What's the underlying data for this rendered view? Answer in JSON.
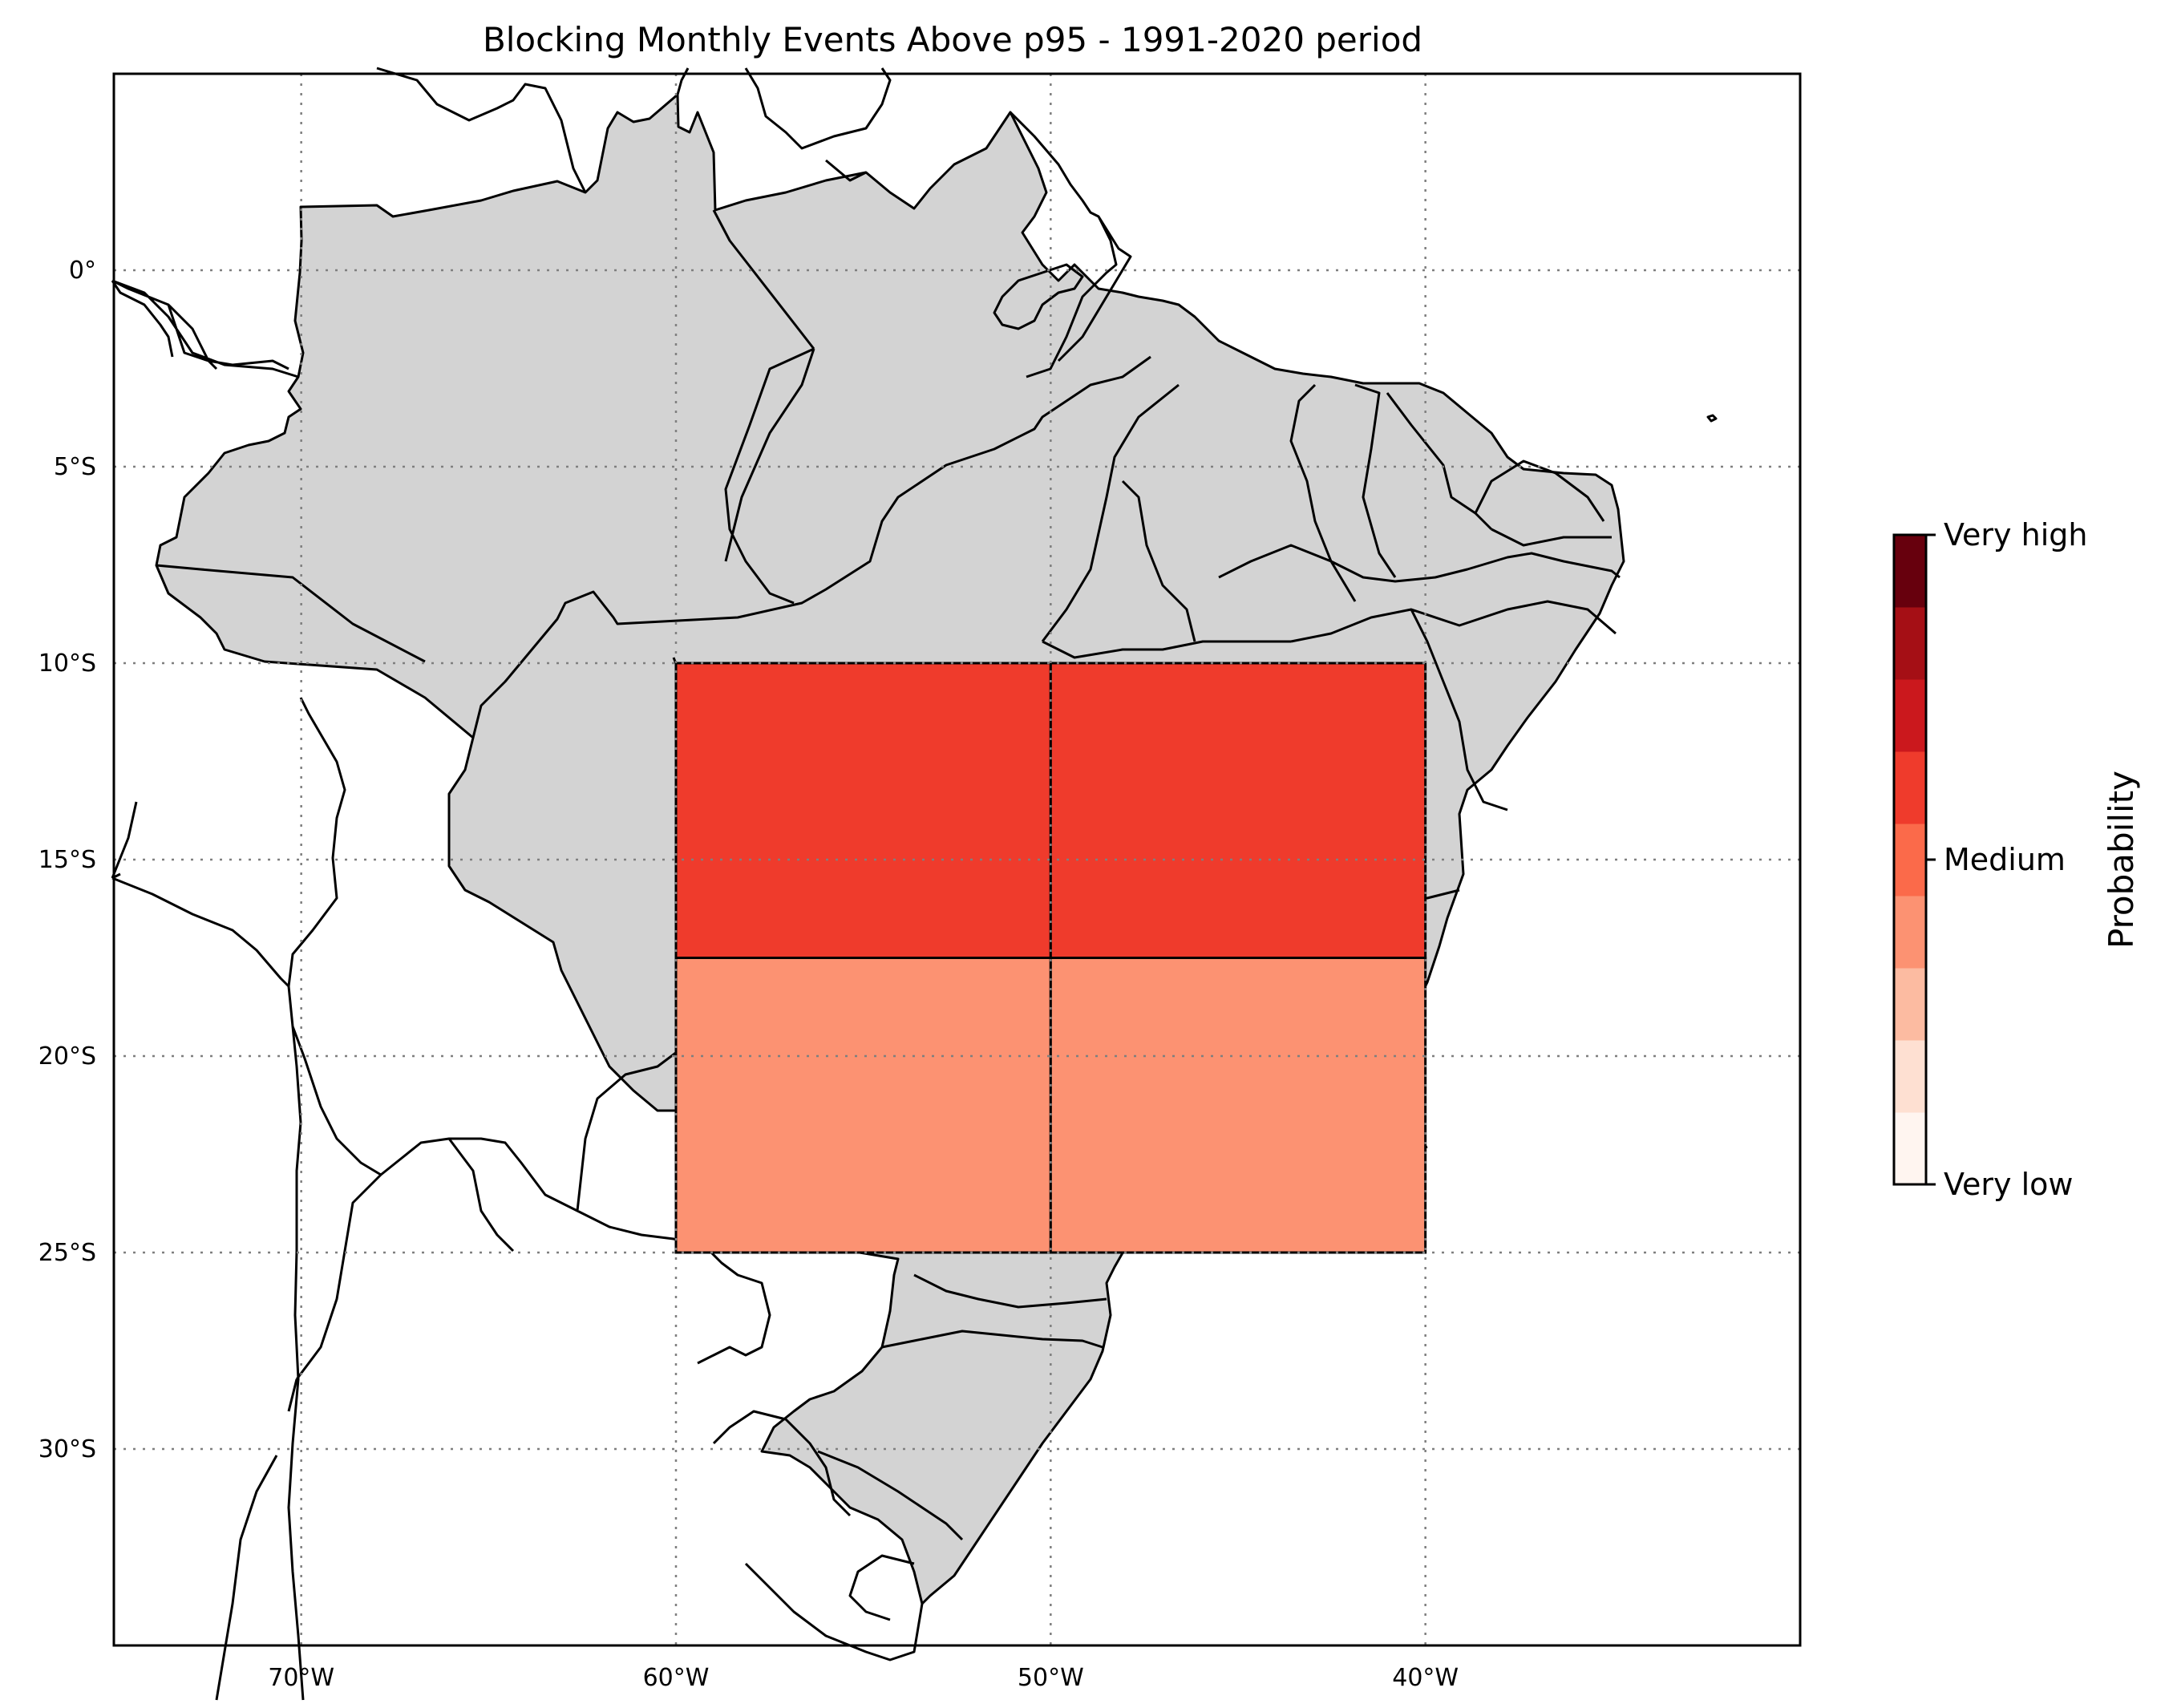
{
  "title": "Blocking Monthly Events Above p95 - 1991-2020 period",
  "map": {
    "extent_lon": [
      -75,
      -30
    ],
    "extent_lat": [
      -35,
      5
    ],
    "lon_ticks": [
      {
        "value": -70,
        "label": "70°W"
      },
      {
        "value": -60,
        "label": "60°W"
      },
      {
        "value": -50,
        "label": "50°W"
      },
      {
        "value": -40,
        "label": "40°W"
      }
    ],
    "lat_ticks": [
      {
        "value": 0,
        "label": "0°"
      },
      {
        "value": -5,
        "label": "5°S"
      },
      {
        "value": -10,
        "label": "10°S"
      },
      {
        "value": -15,
        "label": "15°S"
      },
      {
        "value": -20,
        "label": "20°S"
      },
      {
        "value": -25,
        "label": "25°S"
      },
      {
        "value": -30,
        "label": "30°S"
      }
    ],
    "land_color": "#d3d3d3",
    "grid": true
  },
  "chart_data": {
    "type": "heatmap",
    "title": "Blocking Monthly Events Above p95 - 1991-2020 period",
    "cells": [
      {
        "lon_min": -60,
        "lon_max": -50,
        "lat_min": -17.5,
        "lat_max": -10,
        "level": 5,
        "color": "#ef3b2c"
      },
      {
        "lon_min": -50,
        "lon_max": -40,
        "lat_min": -17.5,
        "lat_max": -10,
        "level": 5,
        "color": "#ef3b2c"
      },
      {
        "lon_min": -60,
        "lon_max": -50,
        "lat_min": -25,
        "lat_max": -17.5,
        "level": 3,
        "color": "#fc9272"
      },
      {
        "lon_min": -50,
        "lon_max": -40,
        "lat_min": -25,
        "lat_max": -17.5,
        "level": 3,
        "color": "#fc9272"
      }
    ]
  },
  "colorbar": {
    "label": "Probability",
    "levels": [
      "#fff5f0",
      "#fee0d2",
      "#fcbba1",
      "#fc9272",
      "#fb6a4a",
      "#ef3b2c",
      "#cb181d",
      "#a50f15",
      "#67000d"
    ],
    "ticks": [
      {
        "position": 0,
        "label": "Very low"
      },
      {
        "position": 0.5,
        "label": "Medium"
      },
      {
        "position": 1,
        "label": "Very high"
      }
    ]
  }
}
